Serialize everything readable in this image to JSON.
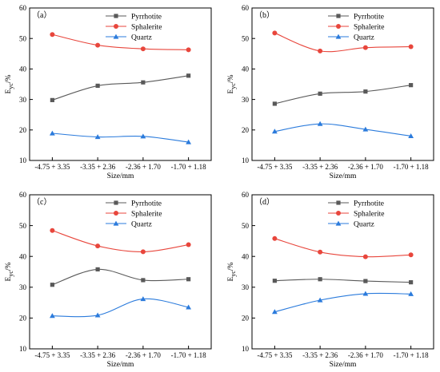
{
  "colors": {
    "Pyrrhotite": "#595959",
    "Sphalerite": "#e8463c",
    "Quartz": "#2b7bdc"
  },
  "chart_data": [
    {
      "type": "line",
      "panel_label": "（a）",
      "categories": [
        "-4.75 + 3.35",
        "-3.35 + 2.36",
        "-2.36 + 1.70",
        "-1.70 + 1.18"
      ],
      "xlabel": "Size/mm",
      "ylabel": {
        "main": "E",
        "sub": "yc",
        "unit": "/%"
      },
      "ylim": [
        10,
        60
      ],
      "yticks": [
        10,
        20,
        30,
        40,
        50,
        60
      ],
      "legend_position": "top-right",
      "series": [
        {
          "name": "Pyrrhotite",
          "marker": "square",
          "values": [
            29.8,
            34.5,
            35.6,
            37.8
          ]
        },
        {
          "name": "Sphalerite",
          "marker": "circle",
          "values": [
            51.3,
            47.8,
            46.6,
            46.3
          ]
        },
        {
          "name": "Quartz",
          "marker": "triangle",
          "values": [
            18.9,
            17.7,
            17.9,
            16.0
          ]
        }
      ]
    },
    {
      "type": "line",
      "panel_label": "（b）",
      "categories": [
        "-4.75 + 3.35",
        "-3.35 + 2.36",
        "-2.36 + 1.70",
        "-1.70 + 1.18"
      ],
      "xlabel": "Size/mm",
      "ylabel": {
        "main": "E",
        "sub": "yc",
        "unit": "/%"
      },
      "ylim": [
        10,
        60
      ],
      "yticks": [
        10,
        20,
        30,
        40,
        50,
        60
      ],
      "legend_position": "top-right",
      "series": [
        {
          "name": "Pyrrhotite",
          "marker": "square",
          "values": [
            28.6,
            31.9,
            32.6,
            34.7
          ]
        },
        {
          "name": "Sphalerite",
          "marker": "circle",
          "values": [
            51.8,
            45.9,
            47.0,
            47.3
          ]
        },
        {
          "name": "Quartz",
          "marker": "triangle",
          "values": [
            19.5,
            22.0,
            20.2,
            18.0
          ]
        }
      ]
    },
    {
      "type": "line",
      "panel_label": "（c）",
      "categories": [
        "-4.75 + 3.35",
        "-3.35 + 2.36",
        "-2.36 + 1.70",
        "-1.70 + 1.18"
      ],
      "xlabel": "Size/mm",
      "ylabel": {
        "main": "E",
        "sub": "yc",
        "unit": "/%"
      },
      "ylim": [
        10,
        60
      ],
      "yticks": [
        10,
        20,
        30,
        40,
        50,
        60
      ],
      "legend_position": "top-right",
      "series": [
        {
          "name": "Pyrrhotite",
          "marker": "square",
          "values": [
            30.8,
            35.8,
            32.3,
            32.6
          ]
        },
        {
          "name": "Sphalerite",
          "marker": "circle",
          "values": [
            48.4,
            43.4,
            41.5,
            43.8
          ]
        },
        {
          "name": "Quartz",
          "marker": "triangle",
          "values": [
            20.7,
            20.9,
            26.2,
            23.5
          ]
        }
      ]
    },
    {
      "type": "line",
      "panel_label": "（d）",
      "categories": [
        "-4.75 + 3.35",
        "-3.35 + 2.36",
        "-2.36 + 1.70",
        "-1.70 + 1.18"
      ],
      "xlabel": "Size/mm",
      "ylabel": {
        "main": "E",
        "sub": "yc",
        "unit": "/%"
      },
      "ylim": [
        10,
        60
      ],
      "yticks": [
        10,
        20,
        30,
        40,
        50,
        60
      ],
      "legend_position": "top-right",
      "series": [
        {
          "name": "Pyrrhotite",
          "marker": "square",
          "values": [
            32.1,
            32.6,
            32.0,
            31.6
          ]
        },
        {
          "name": "Sphalerite",
          "marker": "circle",
          "values": [
            45.8,
            41.4,
            39.9,
            40.5
          ]
        },
        {
          "name": "Quartz",
          "marker": "triangle",
          "values": [
            22.0,
            25.8,
            27.9,
            27.8
          ]
        }
      ]
    }
  ]
}
